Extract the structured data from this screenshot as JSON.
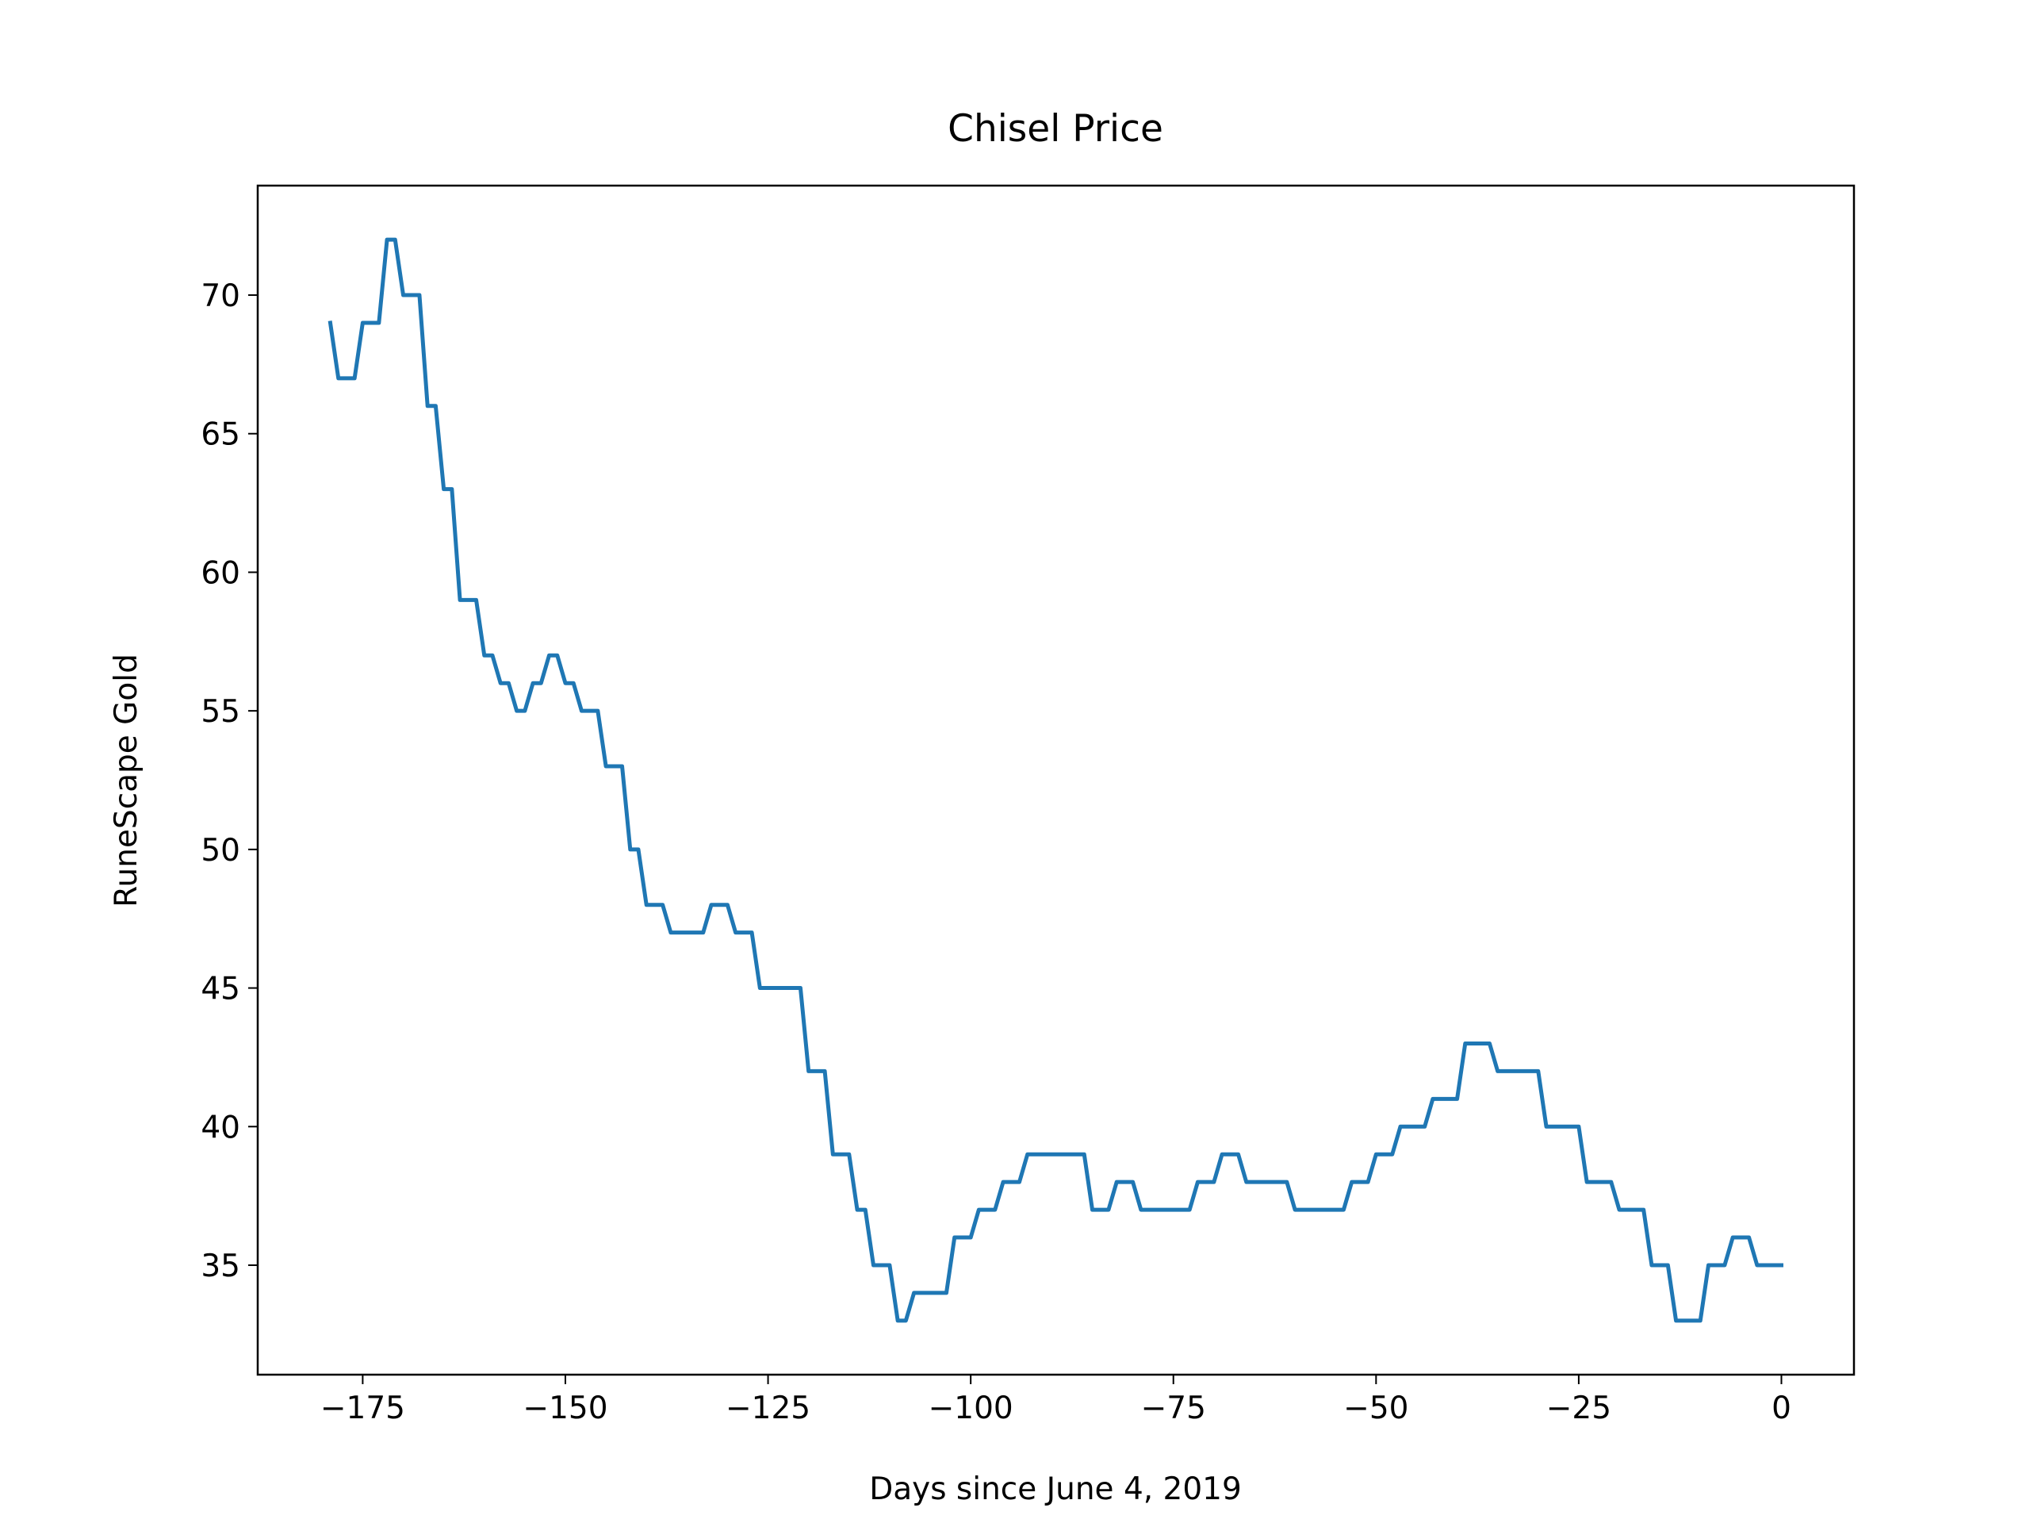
{
  "chart_data": {
    "type": "line",
    "title": "Chisel Price",
    "x_label": "Days since June 4, 2019",
    "y_label": "RuneScape Gold",
    "x": [
      -179,
      -178,
      -177,
      -176,
      -175,
      -174,
      -173,
      -172,
      -171,
      -170,
      -169,
      -168,
      -167,
      -166,
      -165,
      -164,
      -163,
      -162,
      -161,
      -160,
      -159,
      -158,
      -157,
      -156,
      -155,
      -154,
      -153,
      -152,
      -151,
      -150,
      -149,
      -148,
      -147,
      -146,
      -145,
      -144,
      -143,
      -142,
      -141,
      -140,
      -139,
      -138,
      -137,
      -136,
      -135,
      -134,
      -133,
      -132,
      -131,
      -130,
      -129,
      -128,
      -127,
      -126,
      -125,
      -124,
      -123,
      -122,
      -121,
      -120,
      -119,
      -118,
      -117,
      -116,
      -115,
      -114,
      -113,
      -112,
      -111,
      -110,
      -109,
      -108,
      -107,
      -106,
      -105,
      -104,
      -103,
      -102,
      -101,
      -100,
      -99,
      -98,
      -97,
      -96,
      -95,
      -94,
      -93,
      -92,
      -91,
      -90,
      -89,
      -88,
      -87,
      -86,
      -85,
      -84,
      -83,
      -82,
      -81,
      -80,
      -79,
      -78,
      -77,
      -76,
      -75,
      -74,
      -73,
      -72,
      -71,
      -70,
      -69,
      -68,
      -67,
      -66,
      -65,
      -64,
      -63,
      -62,
      -61,
      -60,
      -59,
      -58,
      -57,
      -56,
      -55,
      -54,
      -53,
      -52,
      -51,
      -50,
      -49,
      -48,
      -47,
      -46,
      -45,
      -44,
      -43,
      -42,
      -41,
      -40,
      -39,
      -38,
      -37,
      -36,
      -35,
      -34,
      -33,
      -32,
      -31,
      -30,
      -29,
      -28,
      -27,
      -26,
      -25,
      -24,
      -23,
      -22,
      -21,
      -20,
      -19,
      -18,
      -17,
      -16,
      -15,
      -14,
      -13,
      -12,
      -11,
      -10,
      -9,
      -8,
      -7,
      -6,
      -5,
      -4,
      -3,
      -2,
      -1,
      0
    ],
    "series": [
      {
        "color": "#1f77b4",
        "values": [
          69,
          67,
          67,
          67,
          69,
          69,
          69,
          72,
          72,
          70,
          70,
          70,
          66,
          66,
          63,
          63,
          59,
          59,
          59,
          57,
          57,
          56,
          56,
          55,
          55,
          56,
          56,
          57,
          57,
          56,
          56,
          55,
          55,
          55,
          53,
          53,
          53,
          50,
          50,
          48,
          48,
          48,
          47,
          47,
          47,
          47,
          47,
          48,
          48,
          48,
          47,
          47,
          47,
          45,
          45,
          45,
          45,
          45,
          45,
          42,
          42,
          42,
          39,
          39,
          39,
          37,
          37,
          35,
          35,
          35,
          33,
          33,
          34,
          34,
          34,
          34,
          34,
          36,
          36,
          36,
          37,
          37,
          37,
          38,
          38,
          38,
          39,
          39,
          39,
          39,
          39,
          39,
          39,
          39,
          37,
          37,
          37,
          38,
          38,
          38,
          37,
          37,
          37,
          37,
          37,
          37,
          37,
          38,
          38,
          38,
          39,
          39,
          39,
          38,
          38,
          38,
          38,
          38,
          38,
          37,
          37,
          37,
          37,
          37,
          37,
          37,
          38,
          38,
          38,
          39,
          39,
          39,
          40,
          40,
          40,
          40,
          41,
          41,
          41,
          41,
          43,
          43,
          43,
          43,
          42,
          42,
          42,
          42,
          42,
          42,
          40,
          40,
          40,
          40,
          40,
          38,
          38,
          38,
          38,
          37,
          37,
          37,
          37,
          35,
          35,
          35,
          33,
          33,
          33,
          33,
          35,
          35,
          35,
          36,
          36,
          36,
          35,
          35,
          35,
          35
        ]
      }
    ],
    "xlim": [
      -187.95,
      8.95
    ],
    "xticks": [
      {
        "value": -175,
        "label": "−175"
      },
      {
        "value": -150,
        "label": "−150"
      },
      {
        "value": -125,
        "label": "−125"
      },
      {
        "value": -100,
        "label": "−100"
      },
      {
        "value": -75,
        "label": "−75"
      },
      {
        "value": -50,
        "label": "−50"
      },
      {
        "value": -25,
        "label": "−25"
      },
      0
    ],
    "ylim": [
      31.05,
      73.95
    ],
    "yticks": [
      35,
      40,
      45,
      50,
      55,
      60,
      65,
      70
    ],
    "grid": false
  }
}
